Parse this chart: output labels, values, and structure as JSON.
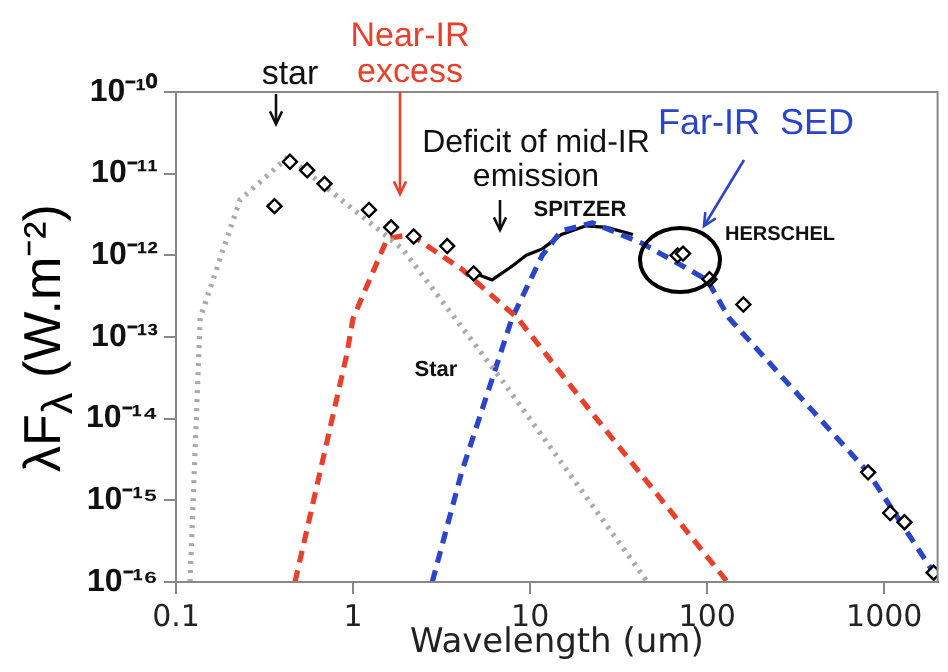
{
  "chart_data": {
    "type": "line",
    "xlabel": "Wavelength (um)",
    "ylabel": "λF$_{λ}$ (W.m⁻²)",
    "log": "xy",
    "grid": false,
    "legend": false,
    "xlim": [
      0.1,
      2000
    ],
    "xticks": [
      0.1,
      1,
      10,
      100,
      1000
    ],
    "ylim": [
      1e-16,
      1e-10
    ],
    "yticks": [
      {
        "value": 1e-16,
        "label": "10⁻¹⁶"
      },
      {
        "value": 1e-15,
        "label": "10⁻¹⁵"
      },
      {
        "value": 1e-14,
        "label": "10⁻¹⁴"
      },
      {
        "value": 1e-13,
        "label": "10⁻¹³"
      },
      {
        "value": 1e-12,
        "label": "10⁻¹²"
      },
      {
        "value": 1e-11,
        "label": "10⁻¹¹"
      },
      {
        "value": 1e-10,
        "label": "10⁻¹⁰"
      }
    ],
    "series": [
      {
        "color": "#aaaaaa",
        "line_style": "dotted",
        "marker": "none",
        "x": [
          0.12,
          0.137,
          0.18,
          0.23,
          0.43,
          1.9,
          6.9,
          46
        ],
        "values": [
          1e-16,
          1.7e-13,
          1e-12,
          4.8e-12,
          1.6e-11,
          1.2e-12,
          3e-14,
          1e-16
        ]
      },
      {
        "color": "#e8402a",
        "line_style": "dashed",
        "marker": "none",
        "x": [
          0.47,
          0.92,
          1.0,
          1.56,
          2.1,
          4.1,
          8.5,
          23.7,
          130
        ],
        "values": [
          1e-16,
          6e-14,
          1.7e-13,
          1.6e-12,
          1.8e-12,
          6.8e-13,
          1.7e-13,
          1e-14,
          1e-16
        ]
      },
      {
        "color": "#2b45c8",
        "line_style": "dashed",
        "marker": "none",
        "x": [
          2.8,
          4.1,
          7.9,
          11.7,
          15,
          22.5,
          43,
          100,
          133,
          810,
          1900,
          2000
        ],
        "values": [
          1e-16,
          2.2e-15,
          1.7e-13,
          1e-12,
          2e-12,
          2.5e-12,
          1.4e-12,
          5e-13,
          1.7e-13,
          2.2e-15,
          1.3e-16,
          1e-16
        ]
      },
      {
        "color": "#000000",
        "line_style": "solid",
        "marker": "none",
        "x": [
          4.9,
          6.1,
          8.0,
          9.5,
          11.7,
          15,
          20.7,
          27,
          38
        ],
        "values": [
          6e-13,
          5e-13,
          7.5e-13,
          1e-12,
          1.2e-12,
          1.8e-12,
          2.3e-12,
          2.2e-12,
          1.8e-12
        ]
      },
      {
        "type": "scatter",
        "color": "#000000",
        "marker": "diamond",
        "x": [
          0.36,
          0.44,
          0.55,
          0.69,
          1.23,
          1.64,
          2.2,
          3.4,
          4.8,
          68,
          73,
          103,
          160,
          810,
          1080,
          1300,
          1900
        ],
        "values": [
          4e-12,
          1.4e-11,
          1.1e-11,
          7.5e-12,
          3.6e-12,
          2.2e-12,
          1.7e-12,
          1.3e-12,
          6e-13,
          1e-12,
          1.05e-12,
          5.1e-13,
          2.5e-13,
          2.2e-15,
          7e-16,
          5.4e-16,
          1.3e-16
        ]
      }
    ],
    "annotations": [
      "star",
      "Near-IR excess",
      "Deficit of mid-IR emission",
      "Far-IR  SED",
      "SPITZER",
      "HERSCHEL",
      "Star"
    ]
  }
}
